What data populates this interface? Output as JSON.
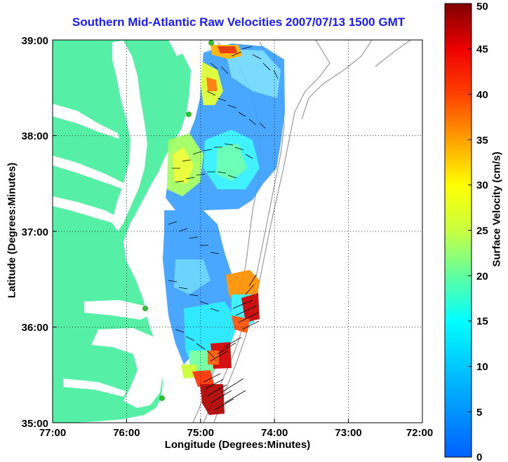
{
  "title": "Southern Mid-Atlantic Raw Velocities 2007/07/13 1500 GMT",
  "xlabel": "Longitude (Degrees:Minutes)",
  "ylabel": "Latitude (Degrees:Minutes)",
  "colorbar": {
    "label": "Surface Velocity (cm/s)",
    "ticks": [
      "0",
      "5",
      "10",
      "15",
      "20",
      "25",
      "30",
      "35",
      "40",
      "45",
      "50"
    ]
  },
  "x_ticks": [
    "77:00",
    "76:00",
    "75:00",
    "74:00",
    "73:00",
    "72:00"
  ],
  "y_ticks": [
    "39:00",
    "38:00",
    "37:00",
    "36:00",
    "35:00"
  ],
  "colors": {
    "land": "#55f0a5",
    "title": "#1a1aff",
    "station": "#22cc22"
  }
}
